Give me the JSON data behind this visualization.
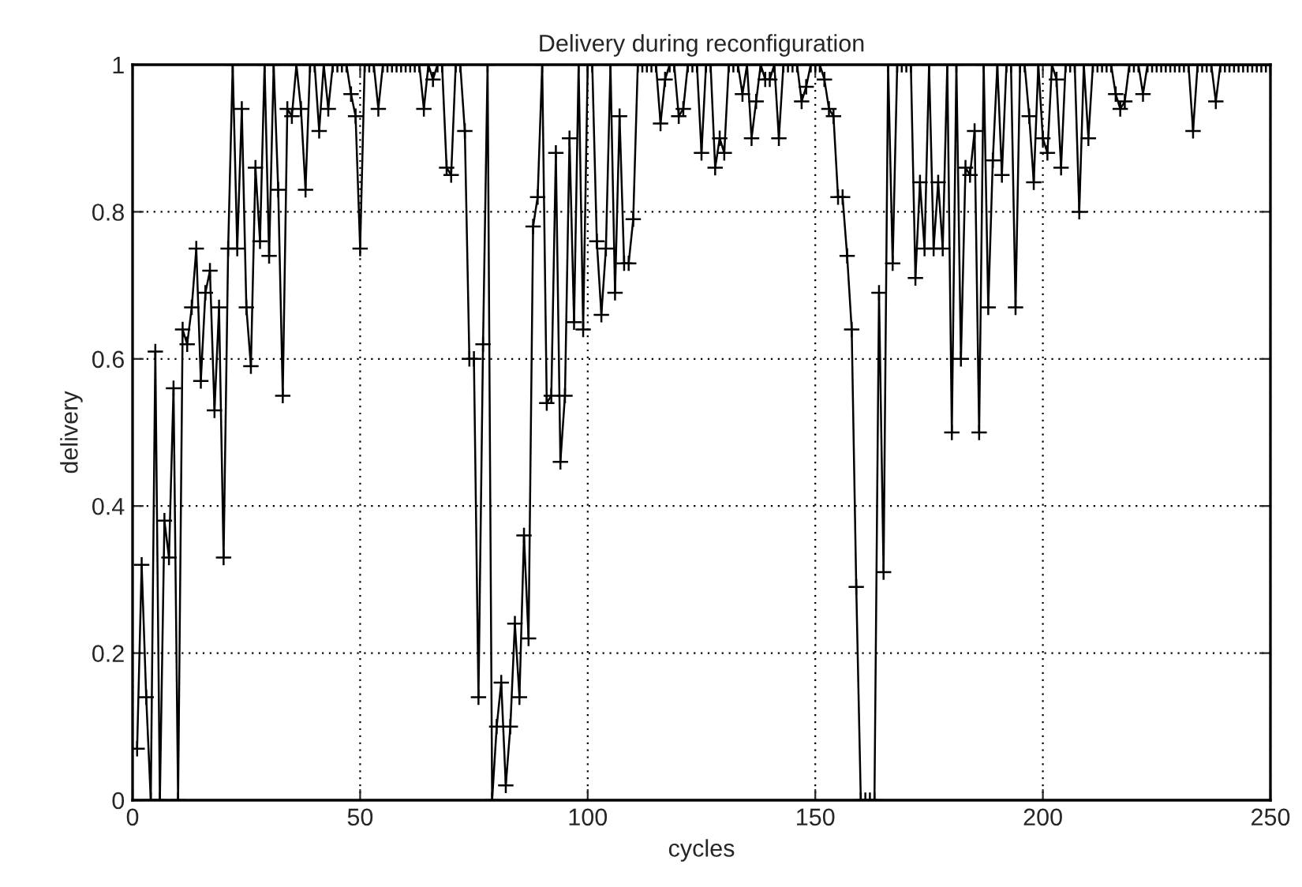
{
  "chart_data": {
    "type": "line",
    "title": "Delivery during reconfiguration",
    "xlabel": "cycles",
    "ylabel": "delivery",
    "x": [
      1,
      2,
      3,
      4,
      5,
      6,
      7,
      8,
      9,
      10,
      11,
      12,
      13,
      14,
      15,
      16,
      17,
      18,
      19,
      20,
      21,
      22,
      23,
      24,
      25,
      26,
      27,
      28,
      29,
      30,
      31,
      32,
      33,
      34,
      35,
      36,
      37,
      38,
      39,
      40,
      41,
      42,
      43,
      44,
      45,
      46,
      47,
      48,
      49,
      50,
      51,
      52,
      53,
      54,
      55,
      56,
      57,
      58,
      59,
      60,
      61,
      62,
      63,
      64,
      65,
      66,
      67,
      68,
      69,
      70,
      71,
      72,
      73,
      74,
      75,
      76,
      77,
      78,
      79,
      80,
      81,
      82,
      83,
      84,
      85,
      86,
      87,
      88,
      89,
      90,
      91,
      92,
      93,
      94,
      95,
      96,
      97,
      98,
      99,
      100,
      101,
      102,
      103,
      104,
      105,
      106,
      107,
      108,
      109,
      110,
      111,
      112,
      113,
      114,
      115,
      116,
      117,
      118,
      119,
      120,
      121,
      122,
      123,
      124,
      125,
      126,
      127,
      128,
      129,
      130,
      131,
      132,
      133,
      134,
      135,
      136,
      137,
      138,
      139,
      140,
      141,
      142,
      143,
      144,
      145,
      146,
      147,
      148,
      149,
      150,
      151,
      152,
      153,
      154,
      155,
      156,
      157,
      158,
      159,
      160,
      161,
      162,
      163,
      164,
      165,
      166,
      167,
      168,
      169,
      170,
      171,
      172,
      173,
      174,
      175,
      176,
      177,
      178,
      179,
      180,
      181,
      182,
      183,
      184,
      185,
      186,
      187,
      188,
      189,
      190,
      191,
      192,
      193,
      194,
      195,
      196,
      197,
      198,
      199,
      200,
      201,
      202,
      203,
      204,
      205,
      206,
      207,
      208,
      209,
      210,
      211,
      212,
      213,
      214,
      215,
      216,
      217,
      218,
      219,
      220,
      221,
      222,
      223,
      224,
      225,
      226,
      227,
      228,
      229,
      230,
      231,
      232,
      233,
      234,
      235,
      236,
      237,
      238,
      239,
      240,
      241,
      242,
      243,
      244,
      245,
      246,
      247,
      248,
      249,
      250
    ],
    "series": [
      {
        "color": "#000000",
        "values": [
          0.07,
          0.32,
          0.14,
          0,
          0.61,
          0,
          0.38,
          0.33,
          0.56,
          0,
          0.64,
          0.62,
          0.67,
          0.75,
          0.57,
          0.69,
          0.72,
          0.53,
          0.67,
          0.33,
          0.75,
          1,
          0.75,
          0.94,
          0.67,
          0.59,
          0.86,
          0.76,
          1,
          0.74,
          1,
          0.83,
          0.55,
          0.94,
          0.93,
          1,
          0.94,
          0.83,
          1,
          1,
          0.91,
          1,
          0.94,
          1,
          1,
          1,
          1,
          0.96,
          0.93,
          0.75,
          1,
          1,
          1,
          0.94,
          1,
          1,
          1,
          1,
          1,
          1,
          1,
          1,
          1,
          0.94,
          1,
          0.98,
          1,
          1,
          0.86,
          0.85,
          1,
          1,
          0.91,
          0.6,
          0.6,
          0.14,
          0.62,
          1,
          0,
          0.1,
          0.16,
          0.02,
          0.1,
          0.24,
          0.14,
          0.36,
          0.22,
          0.78,
          0.82,
          1,
          0.54,
          0.55,
          0.88,
          0.46,
          0.55,
          0.9,
          0.65,
          1,
          0.64,
          1,
          1,
          0.76,
          0.66,
          0.75,
          1,
          0.69,
          0.93,
          0.73,
          0.73,
          0.79,
          1,
          1,
          1,
          1,
          1,
          0.92,
          0.98,
          1,
          1,
          0.93,
          0.94,
          1,
          1,
          1,
          0.88,
          1,
          1,
          0.86,
          0.9,
          0.88,
          1,
          1,
          1,
          0.96,
          1,
          0.9,
          0.95,
          1,
          0.98,
          0.98,
          1,
          0.9,
          1,
          1,
          1,
          1,
          0.95,
          0.97,
          1,
          1,
          1,
          0.98,
          0.94,
          0.93,
          0.82,
          0.82,
          0.74,
          0.64,
          0.29,
          0,
          0,
          0,
          0,
          0.69,
          0.31,
          1,
          0.73,
          1,
          1,
          1,
          1,
          0.71,
          0.84,
          0.75,
          1,
          0.75,
          0.84,
          0.75,
          1,
          0.5,
          1,
          0.6,
          0.86,
          0.85,
          0.91,
          0.5,
          1,
          0.67,
          0.87,
          1,
          0.85,
          1,
          1,
          0.67,
          1,
          1,
          0.93,
          0.84,
          1,
          0.9,
          0.88,
          1,
          0.98,
          0.86,
          1,
          1,
          1,
          0.8,
          1,
          0.9,
          1,
          1,
          1,
          1,
          1,
          0.96,
          0.94,
          0.95,
          1,
          1,
          1,
          0.96,
          1,
          1,
          1,
          1,
          1,
          1,
          1,
          1,
          1,
          1,
          0.91,
          1,
          1,
          1,
          1,
          0.95,
          1,
          1,
          1,
          1,
          1,
          1,
          1,
          1,
          1,
          1,
          1,
          1
        ]
      }
    ],
    "xlim": [
      0,
      250
    ],
    "xticks": [
      0,
      50,
      100,
      150,
      200,
      250
    ],
    "ylim": [
      0,
      1
    ],
    "yticks": [
      0,
      0.2,
      0.4,
      0.6,
      0.8,
      1
    ],
    "grid": true,
    "marker": "cross",
    "line_style": "solid"
  }
}
